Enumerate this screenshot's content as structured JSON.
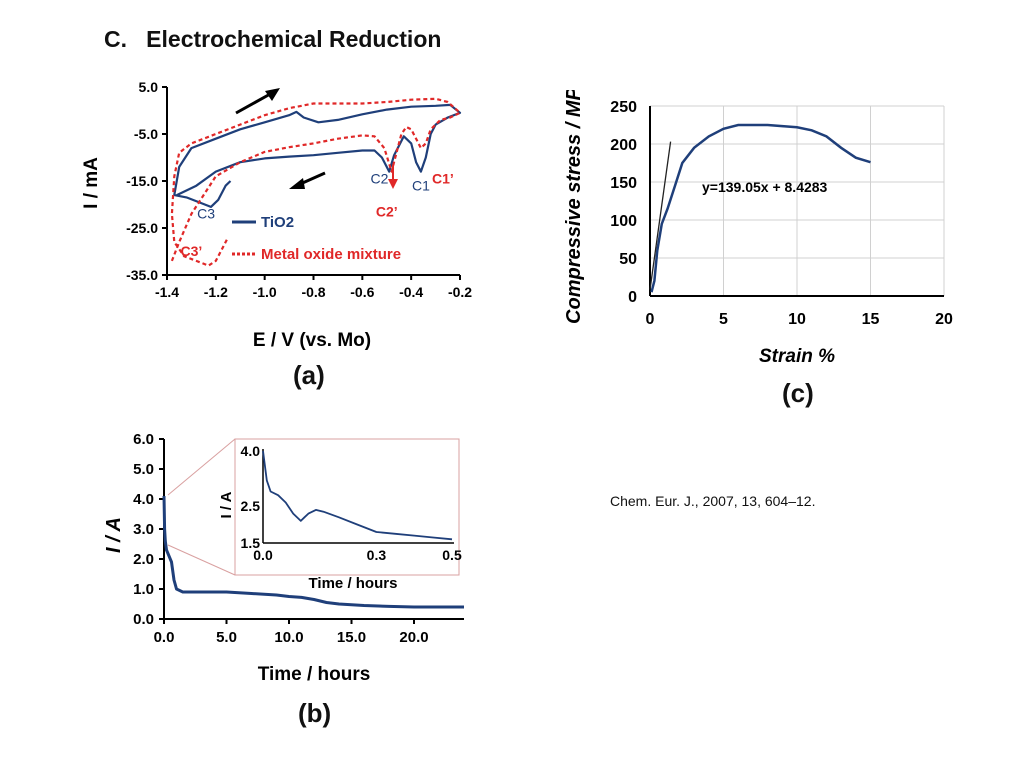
{
  "slide": {
    "title": "C.   Electrochemical Reduction",
    "citation": "Chem. Eur. J., 2007, 13, 604–12."
  },
  "panels": {
    "a": {
      "label": "(a)",
      "ylabel": "I / mA",
      "xlabel": "E / V (vs. Mo)",
      "legend": {
        "tio2": "TiO2",
        "mix": "Metal oxide mixture"
      },
      "peaks": [
        "C1",
        "C2",
        "C3",
        "C1’",
        "C2’",
        "C3’"
      ]
    },
    "b": {
      "label": "(b)",
      "ylabel": "I / A",
      "xlabel": "Time / hours",
      "inset": {
        "ylabel": "I / A",
        "xlabel": "Time / hours"
      }
    },
    "c": {
      "label": "(c)",
      "ylabel": "Compressive stress / MPa",
      "xlabel": "Strain %",
      "equation": "y=139.05x + 8.4283"
    }
  },
  "chart_data": [
    {
      "id": "a",
      "type": "line",
      "xlabel": "E / V (vs. Mo)",
      "ylabel": "I / mA",
      "xlim": [
        -1.4,
        -0.2
      ],
      "ylim": [
        -35,
        5
      ],
      "xticks": [
        "-1.4",
        "-1.2",
        "-1.0",
        "-0.8",
        "-0.6",
        "-0.4",
        "-0.2"
      ],
      "yticks": [
        "5.0",
        "-5.0",
        "-15.0",
        "-25.0",
        "-35.0"
      ],
      "grid": false,
      "legend": "bottom-center",
      "series": [
        {
          "name": "TiO2",
          "color": "#1f3f7a",
          "style": "solid",
          "points": [
            [
              -1.36,
              -18
            ],
            [
              -1.28,
              -16
            ],
            [
              -1.2,
              -13
            ],
            [
              -1.1,
              -11
            ],
            [
              -1.0,
              -10.2
            ],
            [
              -0.9,
              -9.8
            ],
            [
              -0.8,
              -9.5
            ],
            [
              -0.7,
              -9
            ],
            [
              -0.6,
              -8.5
            ],
            [
              -0.55,
              -8.5
            ],
            [
              -0.52,
              -10
            ],
            [
              -0.49,
              -13
            ],
            [
              -0.47,
              -9.5
            ],
            [
              -0.43,
              -5.5
            ],
            [
              -0.4,
              -7
            ],
            [
              -0.38,
              -11
            ],
            [
              -0.36,
              -13
            ],
            [
              -0.34,
              -10
            ],
            [
              -0.32,
              -5
            ],
            [
              -0.3,
              -3
            ],
            [
              -0.25,
              -1.5
            ],
            [
              -0.2,
              -0.5
            ],
            [
              -0.24,
              1.2
            ],
            [
              -0.3,
              1.0
            ],
            [
              -0.4,
              0.8
            ],
            [
              -0.5,
              0.2
            ],
            [
              -0.6,
              -0.8
            ],
            [
              -0.7,
              -2
            ],
            [
              -0.78,
              -2.5
            ],
            [
              -0.84,
              -1.5
            ],
            [
              -0.87,
              -0.3
            ],
            [
              -0.9,
              -1
            ],
            [
              -1.0,
              -2.5
            ],
            [
              -1.1,
              -4
            ],
            [
              -1.2,
              -6
            ],
            [
              -1.3,
              -8
            ],
            [
              -1.35,
              -12
            ],
            [
              -1.37,
              -18
            ],
            [
              -1.32,
              -18.5
            ],
            [
              -1.27,
              -19.5
            ],
            [
              -1.22,
              -20.5
            ],
            [
              -1.19,
              -19
            ],
            [
              -1.16,
              -16
            ],
            [
              -1.14,
              -15
            ]
          ]
        },
        {
          "name": "Metal oxide mixture",
          "color": "#e02828",
          "style": "dashed",
          "points": [
            [
              -1.38,
              -32
            ],
            [
              -1.35,
              -28
            ],
            [
              -1.3,
              -22
            ],
            [
              -1.25,
              -18
            ],
            [
              -1.2,
              -14
            ],
            [
              -1.1,
              -11
            ],
            [
              -1.0,
              -8.8
            ],
            [
              -0.9,
              -7.8
            ],
            [
              -0.8,
              -7
            ],
            [
              -0.7,
              -6
            ],
            [
              -0.6,
              -5.3
            ],
            [
              -0.55,
              -5.5
            ],
            [
              -0.51,
              -8
            ],
            [
              -0.48,
              -13
            ],
            [
              -0.46,
              -9
            ],
            [
              -0.44,
              -5
            ],
            [
              -0.42,
              -3.5
            ],
            [
              -0.4,
              -4
            ],
            [
              -0.38,
              -6
            ],
            [
              -0.36,
              -8
            ],
            [
              -0.34,
              -7
            ],
            [
              -0.32,
              -4
            ],
            [
              -0.28,
              -2
            ],
            [
              -0.24,
              -1.5
            ],
            [
              -0.2,
              -0.5
            ],
            [
              -0.25,
              1.8
            ],
            [
              -0.3,
              2.5
            ],
            [
              -0.4,
              2.3
            ],
            [
              -0.5,
              1.8
            ],
            [
              -0.6,
              1.5
            ],
            [
              -0.7,
              1.5
            ],
            [
              -0.8,
              1.5
            ],
            [
              -0.9,
              0.5
            ],
            [
              -1.0,
              -1
            ],
            [
              -1.1,
              -3
            ],
            [
              -1.2,
              -5
            ],
            [
              -1.3,
              -7
            ],
            [
              -1.35,
              -9
            ],
            [
              -1.37,
              -14
            ],
            [
              -1.38,
              -22
            ],
            [
              -1.37,
              -28
            ],
            [
              -1.33,
              -31
            ],
            [
              -1.28,
              -32
            ],
            [
              -1.23,
              -33
            ],
            [
              -1.2,
              -32
            ],
            [
              -1.17,
              -29
            ],
            [
              -1.15,
              -27
            ]
          ]
        }
      ],
      "annotations": [
        {
          "text": "C1",
          "x": -0.36,
          "y": -17
        },
        {
          "text": "C2",
          "x": -0.53,
          "y": -15.5
        },
        {
          "text": "C3",
          "x": -1.24,
          "y": -23
        },
        {
          "text": "C1’",
          "x": -0.27,
          "y": -15.5
        },
        {
          "text": "C2’",
          "x": -0.5,
          "y": -22.5
        },
        {
          "text": "C3’",
          "x": -1.3,
          "y": -31
        }
      ]
    },
    {
      "id": "b",
      "type": "line",
      "xlabel": "Time / hours",
      "ylabel": "I / A",
      "xlim": [
        0,
        24
      ],
      "ylim": [
        0,
        6
      ],
      "xticks": [
        "0.0",
        "5.0",
        "10.0",
        "15.0",
        "20.0"
      ],
      "yticks": [
        "0.0",
        "1.0",
        "2.0",
        "3.0",
        "4.0",
        "5.0",
        "6.0"
      ],
      "grid": false,
      "series": [
        {
          "color": "#1f3f7a",
          "points": [
            [
              0,
              4.1
            ],
            [
              0.05,
              3.0
            ],
            [
              0.1,
              2.6
            ],
            [
              0.2,
              2.3
            ],
            [
              0.4,
              2.1
            ],
            [
              0.6,
              1.9
            ],
            [
              0.8,
              1.3
            ],
            [
              1.0,
              1.0
            ],
            [
              1.5,
              0.9
            ],
            [
              3,
              0.9
            ],
            [
              5,
              0.9
            ],
            [
              7,
              0.85
            ],
            [
              9,
              0.8
            ],
            [
              10,
              0.75
            ],
            [
              11,
              0.72
            ],
            [
              12,
              0.65
            ],
            [
              13,
              0.55
            ],
            [
              14,
              0.5
            ],
            [
              16,
              0.45
            ],
            [
              18,
              0.42
            ],
            [
              20,
              0.4
            ],
            [
              22,
              0.4
            ],
            [
              24,
              0.4
            ]
          ]
        }
      ],
      "inset": {
        "xlabel": "Time / hours",
        "ylabel": "I / A",
        "xlim": [
          0,
          0.5
        ],
        "ylim": [
          1.5,
          4.0
        ],
        "xticks": [
          "0.0",
          "0.3",
          "0.5"
        ],
        "yticks": [
          "1.5",
          "2.5",
          "4.0"
        ],
        "points": [
          [
            0,
            4.0
          ],
          [
            0.01,
            3.2
          ],
          [
            0.02,
            2.9
          ],
          [
            0.04,
            2.8
          ],
          [
            0.06,
            2.6
          ],
          [
            0.08,
            2.3
          ],
          [
            0.1,
            2.1
          ],
          [
            0.11,
            2.2
          ],
          [
            0.12,
            2.3
          ],
          [
            0.14,
            2.4
          ],
          [
            0.16,
            2.35
          ],
          [
            0.2,
            2.2
          ],
          [
            0.25,
            2.0
          ],
          [
            0.3,
            1.8
          ],
          [
            0.35,
            1.75
          ],
          [
            0.4,
            1.7
          ],
          [
            0.45,
            1.65
          ],
          [
            0.5,
            1.6
          ]
        ]
      }
    },
    {
      "id": "c",
      "type": "line",
      "xlabel": "Strain %",
      "ylabel": "Compressive stress / MPa",
      "xlim": [
        0,
        20
      ],
      "ylim": [
        0,
        250
      ],
      "xticks": [
        "0",
        "5",
        "10",
        "15",
        "20"
      ],
      "yticks": [
        "0",
        "50",
        "100",
        "150",
        "200",
        "250"
      ],
      "grid": true,
      "series": [
        {
          "color": "#1f3f7a",
          "points": [
            [
              0.1,
              5
            ],
            [
              0.3,
              20
            ],
            [
              0.5,
              60
            ],
            [
              0.8,
              95
            ],
            [
              1.2,
              115
            ],
            [
              1.7,
              145
            ],
            [
              2.2,
              175
            ],
            [
              3,
              195
            ],
            [
              4,
              210
            ],
            [
              5,
              220
            ],
            [
              6,
              225
            ],
            [
              8,
              225
            ],
            [
              10,
              222
            ],
            [
              11,
              218
            ],
            [
              12,
              210
            ],
            [
              13,
              195
            ],
            [
              14,
              182
            ],
            [
              15,
              176
            ]
          ]
        },
        {
          "name": "y=139.05x + 8.4283",
          "color": "#222222",
          "points": [
            [
              0,
              8.4283
            ],
            [
              1.4,
              203.1
            ]
          ]
        }
      ]
    }
  ]
}
